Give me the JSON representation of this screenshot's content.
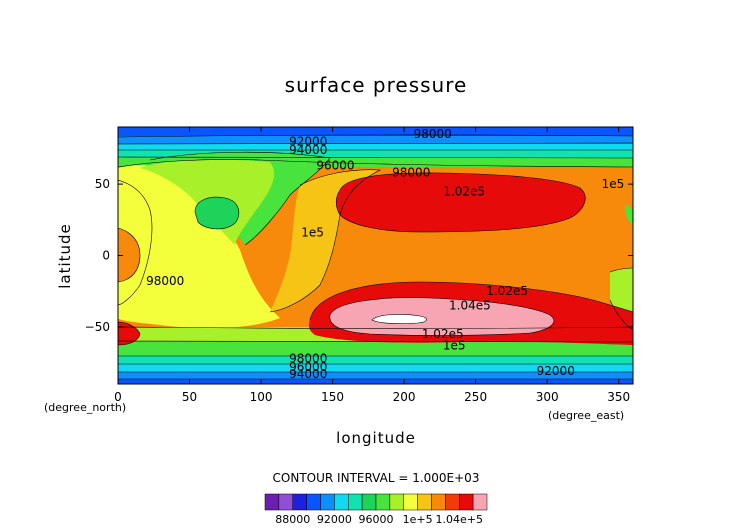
{
  "chart_data": {
    "type": "heatmap",
    "title": "surface pressure",
    "xlabel": "longitude",
    "ylabel": "latitude",
    "x_unit_label": "(degree_east)",
    "y_unit_label": "(degree_north)",
    "xlim": [
      0,
      360
    ],
    "ylim": [
      -90,
      90
    ],
    "x_ticks": [
      0,
      50,
      100,
      150,
      200,
      250,
      300,
      350
    ],
    "y_ticks": [
      -50,
      0,
      50
    ],
    "x_tick_labels": [
      "0",
      "50",
      "100",
      "150",
      "200",
      "250",
      "300",
      "350"
    ],
    "y_tick_labels": [
      "−50",
      "0",
      "50"
    ],
    "contour_interval_text": "CONTOUR INTERVAL = 1.000E+03",
    "colorbar": {
      "colors": [
        "#6a1fb0",
        "#8f4fd6",
        "#1e20e0",
        "#0a55ff",
        "#0f8fff",
        "#10d9f0",
        "#11e3b0",
        "#1ed35a",
        "#48e33d",
        "#a8f02a",
        "#f2ff3a",
        "#f5c414",
        "#f78a0a",
        "#f23b0b",
        "#e60a0a",
        "#f7a5b2"
      ],
      "tick_labels": [
        "88000",
        "92000",
        "96000",
        "1e+5",
        "1.04e+5"
      ]
    },
    "contour_labels": [
      {
        "text": "92000",
        "lon": 133,
        "lat": 80
      },
      {
        "text": "94000",
        "lon": 133,
        "lat": 74
      },
      {
        "text": "96000",
        "lon": 152,
        "lat": 63
      },
      {
        "text": "98000",
        "lon": 205,
        "lat": 58
      },
      {
        "text": "98000",
        "lon": 220,
        "lat": 85
      },
      {
        "text": "1.02e5",
        "lon": 242,
        "lat": 45
      },
      {
        "text": "1e5",
        "lon": 346,
        "lat": 50
      },
      {
        "text": "1e5",
        "lon": 136,
        "lat": 16
      },
      {
        "text": "98000",
        "lon": 33,
        "lat": -18
      },
      {
        "text": "1.02e5",
        "lon": 272,
        "lat": -25
      },
      {
        "text": "1.04e5",
        "lon": 246,
        "lat": -35
      },
      {
        "text": "1.02e5",
        "lon": 227,
        "lat": -55
      },
      {
        "text": "1e5",
        "lon": 235,
        "lat": -63
      },
      {
        "text": "98000",
        "lon": 133,
        "lat": -72
      },
      {
        "text": "96000",
        "lon": 133,
        "lat": -78
      },
      {
        "text": "94000",
        "lon": 133,
        "lat": -83
      },
      {
        "text": "92000",
        "lon": 306,
        "lat": -81
      }
    ]
  }
}
